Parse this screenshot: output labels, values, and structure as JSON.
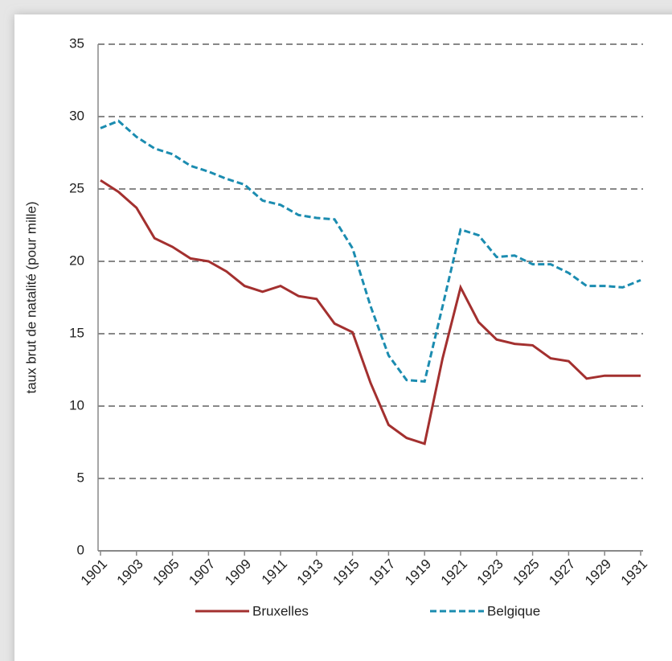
{
  "chart_data": {
    "type": "line",
    "y_label": "taux brut de natalité (pour mille)",
    "x": [
      1901,
      1902,
      1903,
      1904,
      1905,
      1906,
      1907,
      1908,
      1909,
      1910,
      1911,
      1912,
      1913,
      1914,
      1915,
      1916,
      1917,
      1918,
      1919,
      1920,
      1921,
      1922,
      1923,
      1924,
      1925,
      1926,
      1927,
      1928,
      1929,
      1930,
      1931
    ],
    "xlim": [
      1901,
      1931
    ],
    "xticks": [
      1901,
      1903,
      1905,
      1907,
      1909,
      1911,
      1913,
      1915,
      1917,
      1919,
      1921,
      1923,
      1925,
      1927,
      1929,
      1931
    ],
    "ylim": [
      0,
      35
    ],
    "yticks": [
      0,
      5,
      10,
      15,
      20,
      25,
      30,
      35
    ],
    "grid": true,
    "legend": "bottom",
    "series": [
      {
        "name": "Bruxelles",
        "color": "#a3302f",
        "dash": false,
        "values": [
          25.6,
          24.8,
          23.7,
          21.6,
          21.0,
          20.2,
          20.0,
          19.3,
          18.3,
          17.9,
          18.3,
          17.6,
          17.4,
          15.7,
          15.1,
          11.6,
          8.7,
          7.8,
          7.4,
          13.3,
          18.2,
          15.8,
          14.6,
          14.3,
          14.2,
          13.3,
          13.1,
          11.9,
          12.1,
          12.1,
          12.1
        ]
      },
      {
        "name": "Belgique",
        "color": "#1b8cb0",
        "dash": true,
        "values": [
          29.2,
          29.7,
          28.6,
          27.8,
          27.4,
          26.6,
          26.2,
          25.7,
          25.3,
          24.2,
          23.9,
          23.2,
          23.0,
          22.9,
          20.9,
          16.9,
          13.5,
          11.8,
          11.7,
          16.9,
          22.2,
          21.8,
          20.3,
          20.4,
          19.8,
          19.8,
          19.2,
          18.3,
          18.3,
          18.2,
          18.7
        ]
      }
    ]
  }
}
